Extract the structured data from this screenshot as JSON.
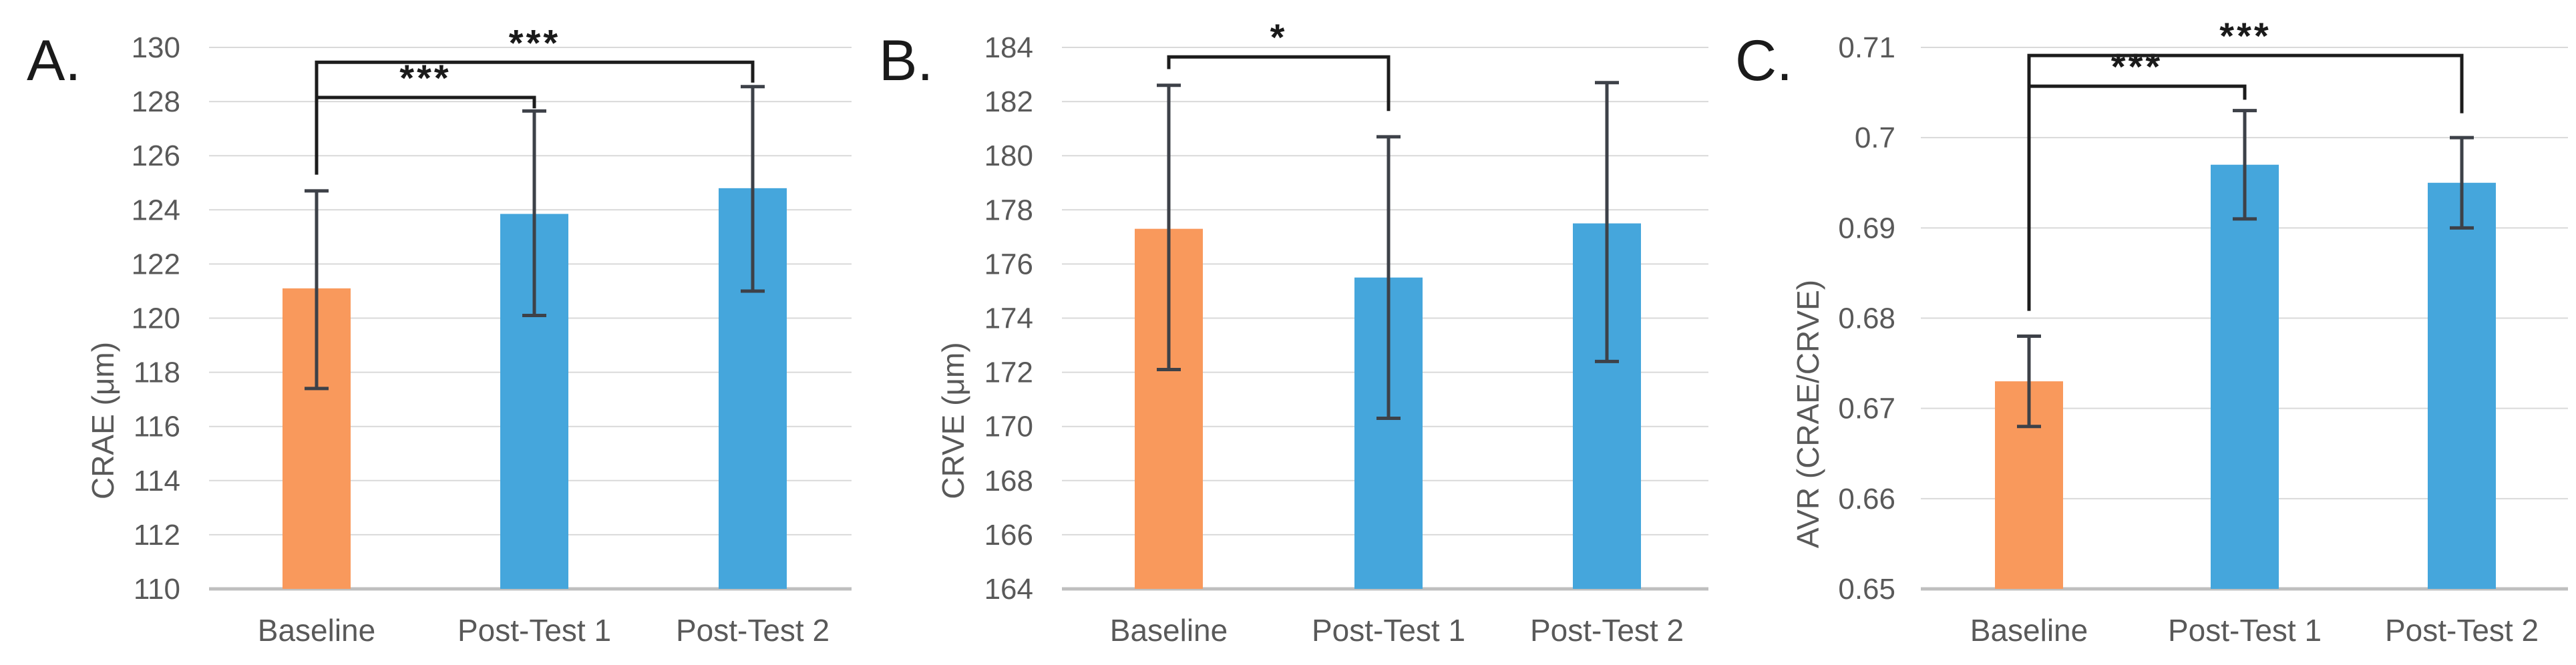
{
  "figure": {
    "description": "Three-panel bar chart figure comparing retinal vessel measures across test sessions",
    "background_color": "#ffffff"
  },
  "colors": {
    "orange": "#F9995C",
    "blue": "#45A6DC",
    "gridline": "#D9D9D9",
    "axis_line": "#BFBFBF",
    "error_bar": "#3D4148",
    "bracket": "#1C1C1C",
    "label_text": "#595959",
    "panel_text": "#1A1A1A"
  },
  "chart_data": [
    {
      "type": "bar",
      "panel_label": "A.",
      "title": "",
      "xlabel": "",
      "ylabel": "CRAE (μm)",
      "categories": [
        "Baseline",
        "Post-Test 1",
        "Post-Test 2"
      ],
      "values": [
        121.1,
        123.85,
        124.8
      ],
      "error_low": [
        117.4,
        120.1,
        121.0
      ],
      "error_high": [
        124.7,
        127.65,
        128.55
      ],
      "bar_colors": [
        "orange",
        "blue",
        "blue"
      ],
      "ylim": [
        110,
        130
      ],
      "yticks": [
        "130",
        "128",
        "126",
        "124",
        "122",
        "120",
        "118",
        "116",
        "114",
        "112",
        "110"
      ],
      "grid": true,
      "legend": "none",
      "significance": [
        {
          "from": 0,
          "to": 1,
          "label": "***",
          "line_y": 128.15,
          "leg_y_from": 125.3,
          "leg_y_to": 127.75
        },
        {
          "from": 0,
          "to": 2,
          "label": "***",
          "line_y": 129.45,
          "leg_y_from": 128.15,
          "leg_y_to": 128.7
        }
      ],
      "layout": {
        "plot_left": 313,
        "plot_right": 1275,
        "tick_label_right": 270,
        "bar_centers": [
          474,
          800,
          1127
        ],
        "panel_label_x": 40,
        "ylabel_x": 170,
        "ylabel_cy": 630
      }
    },
    {
      "type": "bar",
      "panel_label": "B.",
      "title": "",
      "xlabel": "",
      "ylabel": "CRVE (μm)",
      "categories": [
        "Baseline",
        "Post-Test 1",
        "Post-Test 2"
      ],
      "values": [
        177.3,
        175.5,
        177.5
      ],
      "error_low": [
        172.1,
        170.3,
        172.4
      ],
      "error_high": [
        182.6,
        180.7,
        182.7
      ],
      "bar_colors": [
        "orange",
        "blue",
        "blue"
      ],
      "ylim": [
        164,
        184
      ],
      "yticks": [
        "184",
        "182",
        "180",
        "178",
        "176",
        "174",
        "172",
        "170",
        "168",
        "166",
        "164"
      ],
      "grid": true,
      "legend": "none",
      "significance": [
        {
          "from": 0,
          "to": 1,
          "label": "*",
          "line_y": 183.65,
          "leg_y_from": 183.2,
          "leg_y_to": 181.65
        }
      ],
      "layout": {
        "plot_left": 1590,
        "plot_right": 2558,
        "tick_label_right": 1547,
        "bar_centers": [
          1750,
          2079,
          2406
        ],
        "panel_label_x": 1316,
        "ylabel_x": 1443,
        "ylabel_cy": 630
      }
    },
    {
      "type": "bar",
      "panel_label": "C.",
      "title": "",
      "xlabel": "",
      "ylabel": "AVR (CRAE/CRVE)",
      "categories": [
        "Baseline",
        "Post-Test 1",
        "Post-Test 2"
      ],
      "values": [
        0.673,
        0.697,
        0.695
      ],
      "error_low": [
        0.668,
        0.691,
        0.69
      ],
      "error_high": [
        0.678,
        0.703,
        0.7
      ],
      "bar_colors": [
        "orange",
        "blue",
        "blue"
      ],
      "ylim": [
        0.65,
        0.71
      ],
      "yticks": [
        "0.71",
        "0.7",
        "0.69",
        "0.68",
        "0.67",
        "0.66",
        "0.65"
      ],
      "grid": true,
      "legend": "none",
      "significance": [
        {
          "from": 0,
          "to": 1,
          "label": "***",
          "line_y": 0.7057,
          "leg_y_from": 0.6808,
          "leg_y_to": 0.7042
        },
        {
          "from": 0,
          "to": 2,
          "label": "***",
          "line_y": 0.7091,
          "leg_y_from": 0.7057,
          "leg_y_to": 0.7027
        }
      ],
      "layout": {
        "plot_left": 2876,
        "plot_right": 3845,
        "tick_label_right": 2838,
        "bar_centers": [
          3038,
          3361,
          3686
        ],
        "panel_label_x": 2598,
        "ylabel_x": 2723,
        "ylabel_cy": 620
      }
    }
  ]
}
